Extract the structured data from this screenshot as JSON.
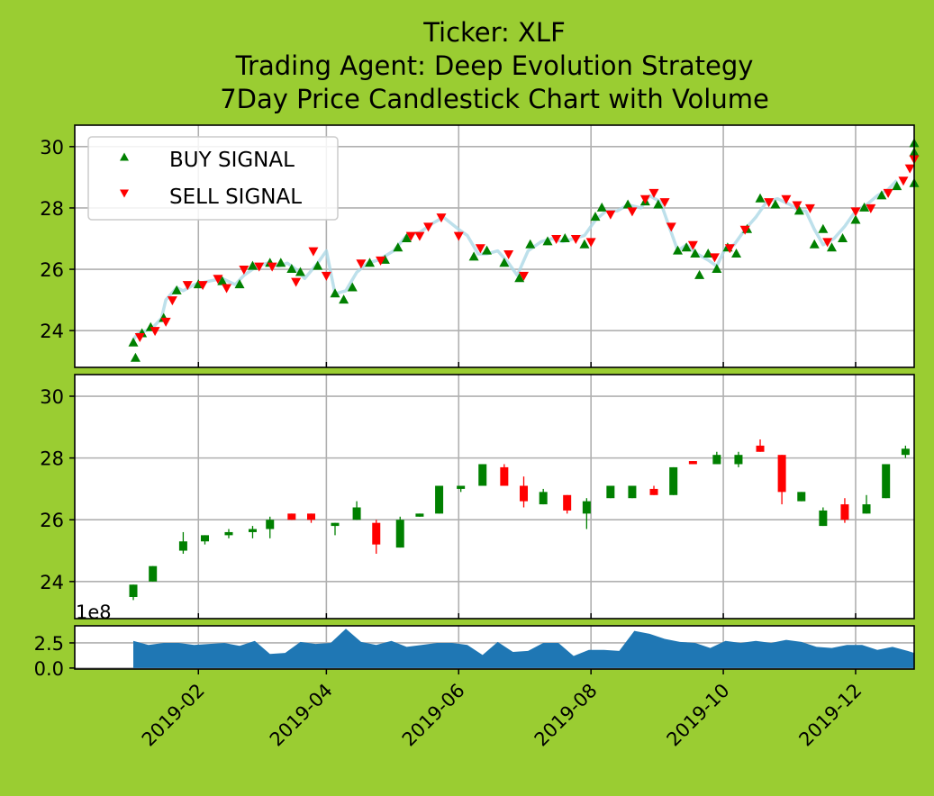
{
  "title_lines": [
    "Ticker: XLF",
    "Trading Agent: Deep Evolution Strategy",
    "7Day Price Candlestick Chart with Volume"
  ],
  "legend": {
    "buy": "BUY SIGNAL",
    "sell": "SELL SIGNAL"
  },
  "volume_exponent": "1e8",
  "colors": {
    "background": "#9acd32",
    "buy": "#008000",
    "sell": "#ff0000",
    "price_line": "#add8e6",
    "volume": "#1f77b4",
    "grid": "#b0b0b0"
  },
  "chart_data": {
    "type": "candlestick",
    "x_axis": {
      "type": "date",
      "range": [
        "2018-12-06",
        "2019-12-28"
      ],
      "ticks": [
        "2019-02",
        "2019-04",
        "2019-06",
        "2019-08",
        "2019-10",
        "2019-12"
      ]
    },
    "price_axes": {
      "ylim": [
        22.8,
        30.7
      ],
      "ticks": [
        24,
        26,
        28,
        30
      ]
    },
    "volume_axis": {
      "ylim": [
        -0.1,
        4.2
      ],
      "ticks": [
        "0.0",
        "2.5"
      ],
      "unit": "1e8"
    },
    "grid": true,
    "legend_position": "upper-left",
    "price_line": [
      [
        "2019-01-02",
        23.7
      ],
      [
        "2019-01-04",
        23.9
      ],
      [
        "2019-01-08",
        24.0
      ],
      [
        "2019-01-11",
        24.1
      ],
      [
        "2019-01-15",
        24.4
      ],
      [
        "2019-01-17",
        25.0
      ],
      [
        "2019-01-22",
        25.4
      ],
      [
        "2019-01-25",
        25.3
      ],
      [
        "2019-01-30",
        25.5
      ],
      [
        "2019-02-05",
        25.6
      ],
      [
        "2019-02-12",
        25.7
      ],
      [
        "2019-02-18",
        25.5
      ],
      [
        "2019-02-22",
        25.8
      ],
      [
        "2019-02-28",
        26.1
      ],
      [
        "2019-03-05",
        26.2
      ],
      [
        "2019-03-10",
        26.1
      ],
      [
        "2019-03-14",
        26.2
      ],
      [
        "2019-03-18",
        26.0
      ],
      [
        "2019-03-22",
        25.7
      ],
      [
        "2019-03-28",
        26.2
      ],
      [
        "2019-04-01",
        26.6
      ],
      [
        "2019-04-05",
        25.2
      ],
      [
        "2019-04-10",
        25.3
      ],
      [
        "2019-04-15",
        25.9
      ],
      [
        "2019-04-20",
        26.2
      ],
      [
        "2019-04-25",
        26.3
      ],
      [
        "2019-05-02",
        26.6
      ],
      [
        "2019-05-08",
        27.1
      ],
      [
        "2019-05-14",
        27.2
      ],
      [
        "2019-05-20",
        27.5
      ],
      [
        "2019-05-25",
        27.7
      ],
      [
        "2019-06-01",
        27.3
      ],
      [
        "2019-06-05",
        27.1
      ],
      [
        "2019-06-10",
        26.5
      ],
      [
        "2019-06-14",
        26.5
      ],
      [
        "2019-06-19",
        26.6
      ],
      [
        "2019-06-24",
        26.2
      ],
      [
        "2019-06-28",
        25.8
      ],
      [
        "2019-07-03",
        26.6
      ],
      [
        "2019-07-09",
        26.9
      ],
      [
        "2019-07-14",
        27.0
      ],
      [
        "2019-07-19",
        26.9
      ],
      [
        "2019-07-24",
        27.0
      ],
      [
        "2019-07-29",
        27.1
      ],
      [
        "2019-08-03",
        27.6
      ],
      [
        "2019-08-08",
        27.9
      ],
      [
        "2019-08-13",
        27.9
      ],
      [
        "2019-08-18",
        28.1
      ],
      [
        "2019-08-24",
        28.0
      ],
      [
        "2019-08-28",
        28.4
      ],
      [
        "2019-09-02",
        28.2
      ],
      [
        "2019-09-06",
        27.4
      ],
      [
        "2019-09-10",
        26.6
      ],
      [
        "2019-09-14",
        26.8
      ],
      [
        "2019-09-19",
        26.5
      ],
      [
        "2019-09-24",
        26.3
      ],
      [
        "2019-09-28",
        26.1
      ],
      [
        "2019-10-02",
        26.7
      ],
      [
        "2019-10-06",
        26.8
      ],
      [
        "2019-10-11",
        27.3
      ],
      [
        "2019-10-16",
        27.7
      ],
      [
        "2019-10-21",
        28.2
      ],
      [
        "2019-10-26",
        28.3
      ],
      [
        "2019-11-01",
        28.1
      ],
      [
        "2019-11-05",
        27.9
      ],
      [
        "2019-11-08",
        27.9
      ],
      [
        "2019-11-12",
        27.3
      ],
      [
        "2019-11-16",
        26.8
      ],
      [
        "2019-11-21",
        27.0
      ],
      [
        "2019-11-26",
        27.4
      ],
      [
        "2019-12-01",
        27.9
      ],
      [
        "2019-12-06",
        28.1
      ],
      [
        "2019-12-11",
        28.4
      ],
      [
        "2019-12-16",
        28.6
      ],
      [
        "2019-12-20",
        28.9
      ]
    ],
    "buy_signals": [
      [
        "2019-01-02",
        23.6
      ],
      [
        "2019-01-03",
        23.1
      ],
      [
        "2019-01-06",
        23.9
      ],
      [
        "2019-01-10",
        24.1
      ],
      [
        "2019-01-16",
        24.4
      ],
      [
        "2019-01-22",
        25.3
      ],
      [
        "2019-02-01",
        25.5
      ],
      [
        "2019-02-12",
        25.6
      ],
      [
        "2019-02-20",
        25.5
      ],
      [
        "2019-02-26",
        26.1
      ],
      [
        "2019-03-06",
        26.2
      ],
      [
        "2019-03-11",
        26.2
      ],
      [
        "2019-03-16",
        26.0
      ],
      [
        "2019-03-20",
        25.9
      ],
      [
        "2019-03-28",
        26.1
      ],
      [
        "2019-04-05",
        25.2
      ],
      [
        "2019-04-09",
        25.0
      ],
      [
        "2019-04-13",
        25.4
      ],
      [
        "2019-04-21",
        26.2
      ],
      [
        "2019-04-28",
        26.3
      ],
      [
        "2019-05-04",
        26.7
      ],
      [
        "2019-05-08",
        27.0
      ],
      [
        "2019-06-08",
        26.4
      ],
      [
        "2019-06-14",
        26.6
      ],
      [
        "2019-06-22",
        26.2
      ],
      [
        "2019-06-29",
        25.7
      ],
      [
        "2019-07-04",
        26.8
      ],
      [
        "2019-07-12",
        26.9
      ],
      [
        "2019-07-20",
        27.0
      ],
      [
        "2019-07-29",
        26.8
      ],
      [
        "2019-08-03",
        27.7
      ],
      [
        "2019-08-06",
        28.0
      ],
      [
        "2019-08-18",
        28.1
      ],
      [
        "2019-08-26",
        28.2
      ],
      [
        "2019-09-01",
        28.1
      ],
      [
        "2019-09-10",
        26.6
      ],
      [
        "2019-09-14",
        26.7
      ],
      [
        "2019-09-18",
        26.5
      ],
      [
        "2019-09-20",
        25.8
      ],
      [
        "2019-09-24",
        26.5
      ],
      [
        "2019-09-28",
        26.0
      ],
      [
        "2019-10-03",
        26.7
      ],
      [
        "2019-10-07",
        26.5
      ],
      [
        "2019-10-12",
        27.3
      ],
      [
        "2019-10-18",
        28.3
      ],
      [
        "2019-10-25",
        28.1
      ],
      [
        "2019-11-05",
        27.9
      ],
      [
        "2019-11-12",
        26.8
      ],
      [
        "2019-11-16",
        27.3
      ],
      [
        "2019-11-20",
        26.7
      ],
      [
        "2019-11-25",
        27.0
      ],
      [
        "2019-12-01",
        27.6
      ],
      [
        "2019-12-05",
        28.0
      ],
      [
        "2019-12-13",
        28.4
      ],
      [
        "2019-12-20",
        28.7
      ],
      [
        "2019-12-28",
        28.8
      ],
      [
        "2019-12-28",
        29.8
      ],
      [
        "2019-12-28",
        30.1
      ]
    ],
    "sell_signals": [
      [
        "2019-01-05",
        23.8
      ],
      [
        "2019-01-12",
        24.0
      ],
      [
        "2019-01-17",
        24.3
      ],
      [
        "2019-01-20",
        25.0
      ],
      [
        "2019-01-27",
        25.5
      ],
      [
        "2019-02-03",
        25.5
      ],
      [
        "2019-02-10",
        25.7
      ],
      [
        "2019-02-14",
        25.4
      ],
      [
        "2019-02-22",
        26.0
      ],
      [
        "2019-03-01",
        26.1
      ],
      [
        "2019-03-07",
        26.1
      ],
      [
        "2019-03-18",
        25.6
      ],
      [
        "2019-03-26",
        26.6
      ],
      [
        "2019-04-01",
        25.8
      ],
      [
        "2019-04-17",
        26.2
      ],
      [
        "2019-04-26",
        26.3
      ],
      [
        "2019-05-10",
        27.1
      ],
      [
        "2019-05-14",
        27.1
      ],
      [
        "2019-05-18",
        27.4
      ],
      [
        "2019-05-24",
        27.7
      ],
      [
        "2019-06-01",
        27.1
      ],
      [
        "2019-06-11",
        26.7
      ],
      [
        "2019-06-24",
        26.5
      ],
      [
        "2019-07-01",
        25.8
      ],
      [
        "2019-07-16",
        27.0
      ],
      [
        "2019-07-25",
        27.0
      ],
      [
        "2019-08-01",
        26.9
      ],
      [
        "2019-08-10",
        27.8
      ],
      [
        "2019-08-20",
        27.9
      ],
      [
        "2019-08-26",
        28.3
      ],
      [
        "2019-08-30",
        28.5
      ],
      [
        "2019-09-04",
        28.2
      ],
      [
        "2019-09-07",
        27.4
      ],
      [
        "2019-09-17",
        26.8
      ],
      [
        "2019-09-27",
        26.4
      ],
      [
        "2019-10-04",
        26.7
      ],
      [
        "2019-10-11",
        27.3
      ],
      [
        "2019-10-22",
        28.2
      ],
      [
        "2019-10-30",
        28.3
      ],
      [
        "2019-11-04",
        28.1
      ],
      [
        "2019-11-10",
        28.0
      ],
      [
        "2019-11-18",
        26.9
      ],
      [
        "2019-12-01",
        27.9
      ],
      [
        "2019-12-08",
        28.0
      ],
      [
        "2019-12-16",
        28.5
      ],
      [
        "2019-12-23",
        28.9
      ],
      [
        "2019-12-26",
        29.3
      ],
      [
        "2019-12-28",
        29.6
      ]
    ],
    "candles": [
      {
        "date": "2019-01-02",
        "open": 23.5,
        "high": 23.9,
        "low": 23.4,
        "close": 23.9
      },
      {
        "date": "2019-01-11",
        "open": 24.0,
        "high": 24.5,
        "low": 24.0,
        "close": 24.5
      },
      {
        "date": "2019-01-25",
        "open": 25.0,
        "high": 25.6,
        "low": 24.9,
        "close": 25.3
      },
      {
        "date": "2019-02-04",
        "open": 25.3,
        "high": 25.5,
        "low": 25.2,
        "close": 25.5
      },
      {
        "date": "2019-02-15",
        "open": 25.5,
        "high": 25.7,
        "low": 25.4,
        "close": 25.6
      },
      {
        "date": "2019-02-26",
        "open": 25.6,
        "high": 25.8,
        "low": 25.4,
        "close": 25.7
      },
      {
        "date": "2019-03-06",
        "open": 25.7,
        "high": 26.1,
        "low": 25.4,
        "close": 26.0
      },
      {
        "date": "2019-03-16",
        "open": 26.2,
        "high": 26.2,
        "low": 26.0,
        "close": 26.0
      },
      {
        "date": "2019-03-25",
        "open": 26.2,
        "high": 26.2,
        "low": 25.9,
        "close": 26.0
      },
      {
        "date": "2019-04-05",
        "open": 25.8,
        "high": 25.9,
        "low": 25.5,
        "close": 25.9
      },
      {
        "date": "2019-04-15",
        "open": 26.0,
        "high": 26.6,
        "low": 26.0,
        "close": 26.4
      },
      {
        "date": "2019-04-24",
        "open": 25.9,
        "high": 26.0,
        "low": 24.9,
        "close": 25.2
      },
      {
        "date": "2019-05-05",
        "open": 25.1,
        "high": 26.1,
        "low": 25.1,
        "close": 26.0
      },
      {
        "date": "2019-05-14",
        "open": 26.1,
        "high": 26.2,
        "low": 26.1,
        "close": 26.2
      },
      {
        "date": "2019-05-23",
        "open": 26.2,
        "high": 27.1,
        "low": 26.2,
        "close": 27.1
      },
      {
        "date": "2019-06-02",
        "open": 27.0,
        "high": 27.1,
        "low": 26.9,
        "close": 27.1
      },
      {
        "date": "2019-06-12",
        "open": 27.1,
        "high": 27.8,
        "low": 27.1,
        "close": 27.8
      },
      {
        "date": "2019-06-22",
        "open": 27.7,
        "high": 27.8,
        "low": 27.1,
        "close": 27.1
      },
      {
        "date": "2019-07-01",
        "open": 27.1,
        "high": 27.4,
        "low": 26.4,
        "close": 26.6
      },
      {
        "date": "2019-07-10",
        "open": 26.5,
        "high": 27.0,
        "low": 26.5,
        "close": 26.9
      },
      {
        "date": "2019-07-21",
        "open": 26.8,
        "high": 26.8,
        "low": 26.2,
        "close": 26.3
      },
      {
        "date": "2019-07-30",
        "open": 26.2,
        "high": 26.7,
        "low": 25.7,
        "close": 26.6
      },
      {
        "date": "2019-08-10",
        "open": 26.7,
        "high": 27.1,
        "low": 26.7,
        "close": 27.1
      },
      {
        "date": "2019-08-20",
        "open": 26.7,
        "high": 27.1,
        "low": 26.7,
        "close": 27.1
      },
      {
        "date": "2019-08-30",
        "open": 27.0,
        "high": 27.1,
        "low": 26.8,
        "close": 26.8
      },
      {
        "date": "2019-09-08",
        "open": 26.8,
        "high": 27.7,
        "low": 26.8,
        "close": 27.7
      },
      {
        "date": "2019-09-17",
        "open": 27.9,
        "high": 27.9,
        "low": 27.8,
        "close": 27.8
      },
      {
        "date": "2019-09-28",
        "open": 27.8,
        "high": 28.2,
        "low": 27.8,
        "close": 28.1
      },
      {
        "date": "2019-10-08",
        "open": 27.8,
        "high": 28.2,
        "low": 27.7,
        "close": 28.1
      },
      {
        "date": "2019-10-18",
        "open": 28.4,
        "high": 28.6,
        "low": 28.2,
        "close": 28.2
      },
      {
        "date": "2019-10-28",
        "open": 28.1,
        "high": 28.1,
        "low": 26.5,
        "close": 26.9
      },
      {
        "date": "2019-11-06",
        "open": 26.6,
        "high": 26.9,
        "low": 26.6,
        "close": 26.9
      },
      {
        "date": "2019-11-16",
        "open": 25.8,
        "high": 26.4,
        "low": 25.8,
        "close": 26.3
      },
      {
        "date": "2019-11-26",
        "open": 26.5,
        "high": 26.7,
        "low": 25.9,
        "close": 26.0
      },
      {
        "date": "2019-12-06",
        "open": 26.2,
        "high": 26.8,
        "low": 26.2,
        "close": 26.5
      },
      {
        "date": "2019-12-15",
        "open": 26.7,
        "high": 27.8,
        "low": 26.7,
        "close": 27.8
      },
      {
        "date": "2019-12-24",
        "open": 28.1,
        "high": 28.4,
        "low": 28.0,
        "close": 28.3
      }
    ],
    "volume": [
      [
        "2019-01-02",
        2.7
      ],
      [
        "2019-01-09",
        2.3
      ],
      [
        "2019-01-16",
        2.5
      ],
      [
        "2019-01-23",
        2.5
      ],
      [
        "2019-01-30",
        2.3
      ],
      [
        "2019-02-06",
        2.4
      ],
      [
        "2019-02-13",
        2.5
      ],
      [
        "2019-02-20",
        2.2
      ],
      [
        "2019-02-27",
        2.7
      ],
      [
        "2019-03-06",
        1.4
      ],
      [
        "2019-03-13",
        1.5
      ],
      [
        "2019-03-20",
        2.6
      ],
      [
        "2019-03-27",
        2.4
      ],
      [
        "2019-04-03",
        2.5
      ],
      [
        "2019-04-10",
        3.9
      ],
      [
        "2019-04-17",
        2.6
      ],
      [
        "2019-04-24",
        2.3
      ],
      [
        "2019-05-01",
        2.7
      ],
      [
        "2019-05-08",
        2.1
      ],
      [
        "2019-05-15",
        2.3
      ],
      [
        "2019-05-22",
        2.5
      ],
      [
        "2019-05-29",
        2.5
      ],
      [
        "2019-06-05",
        2.3
      ],
      [
        "2019-06-12",
        1.3
      ],
      [
        "2019-06-19",
        2.6
      ],
      [
        "2019-06-26",
        1.6
      ],
      [
        "2019-07-03",
        1.7
      ],
      [
        "2019-07-10",
        2.5
      ],
      [
        "2019-07-17",
        2.5
      ],
      [
        "2019-07-24",
        1.2
      ],
      [
        "2019-07-31",
        1.8
      ],
      [
        "2019-08-07",
        1.8
      ],
      [
        "2019-08-14",
        1.7
      ],
      [
        "2019-08-21",
        3.7
      ],
      [
        "2019-08-28",
        3.4
      ],
      [
        "2019-09-04",
        2.9
      ],
      [
        "2019-09-11",
        2.6
      ],
      [
        "2019-09-18",
        2.5
      ],
      [
        "2019-09-25",
        2.0
      ],
      [
        "2019-10-02",
        2.7
      ],
      [
        "2019-10-09",
        2.5
      ],
      [
        "2019-10-16",
        2.7
      ],
      [
        "2019-10-23",
        2.5
      ],
      [
        "2019-10-30",
        2.8
      ],
      [
        "2019-11-06",
        2.6
      ],
      [
        "2019-11-13",
        2.1
      ],
      [
        "2019-11-20",
        2.0
      ],
      [
        "2019-11-27",
        2.3
      ],
      [
        "2019-12-04",
        2.3
      ],
      [
        "2019-12-11",
        1.8
      ],
      [
        "2019-12-18",
        2.1
      ],
      [
        "2019-12-25",
        1.7
      ],
      [
        "2019-12-28",
        1.5
      ]
    ]
  }
}
